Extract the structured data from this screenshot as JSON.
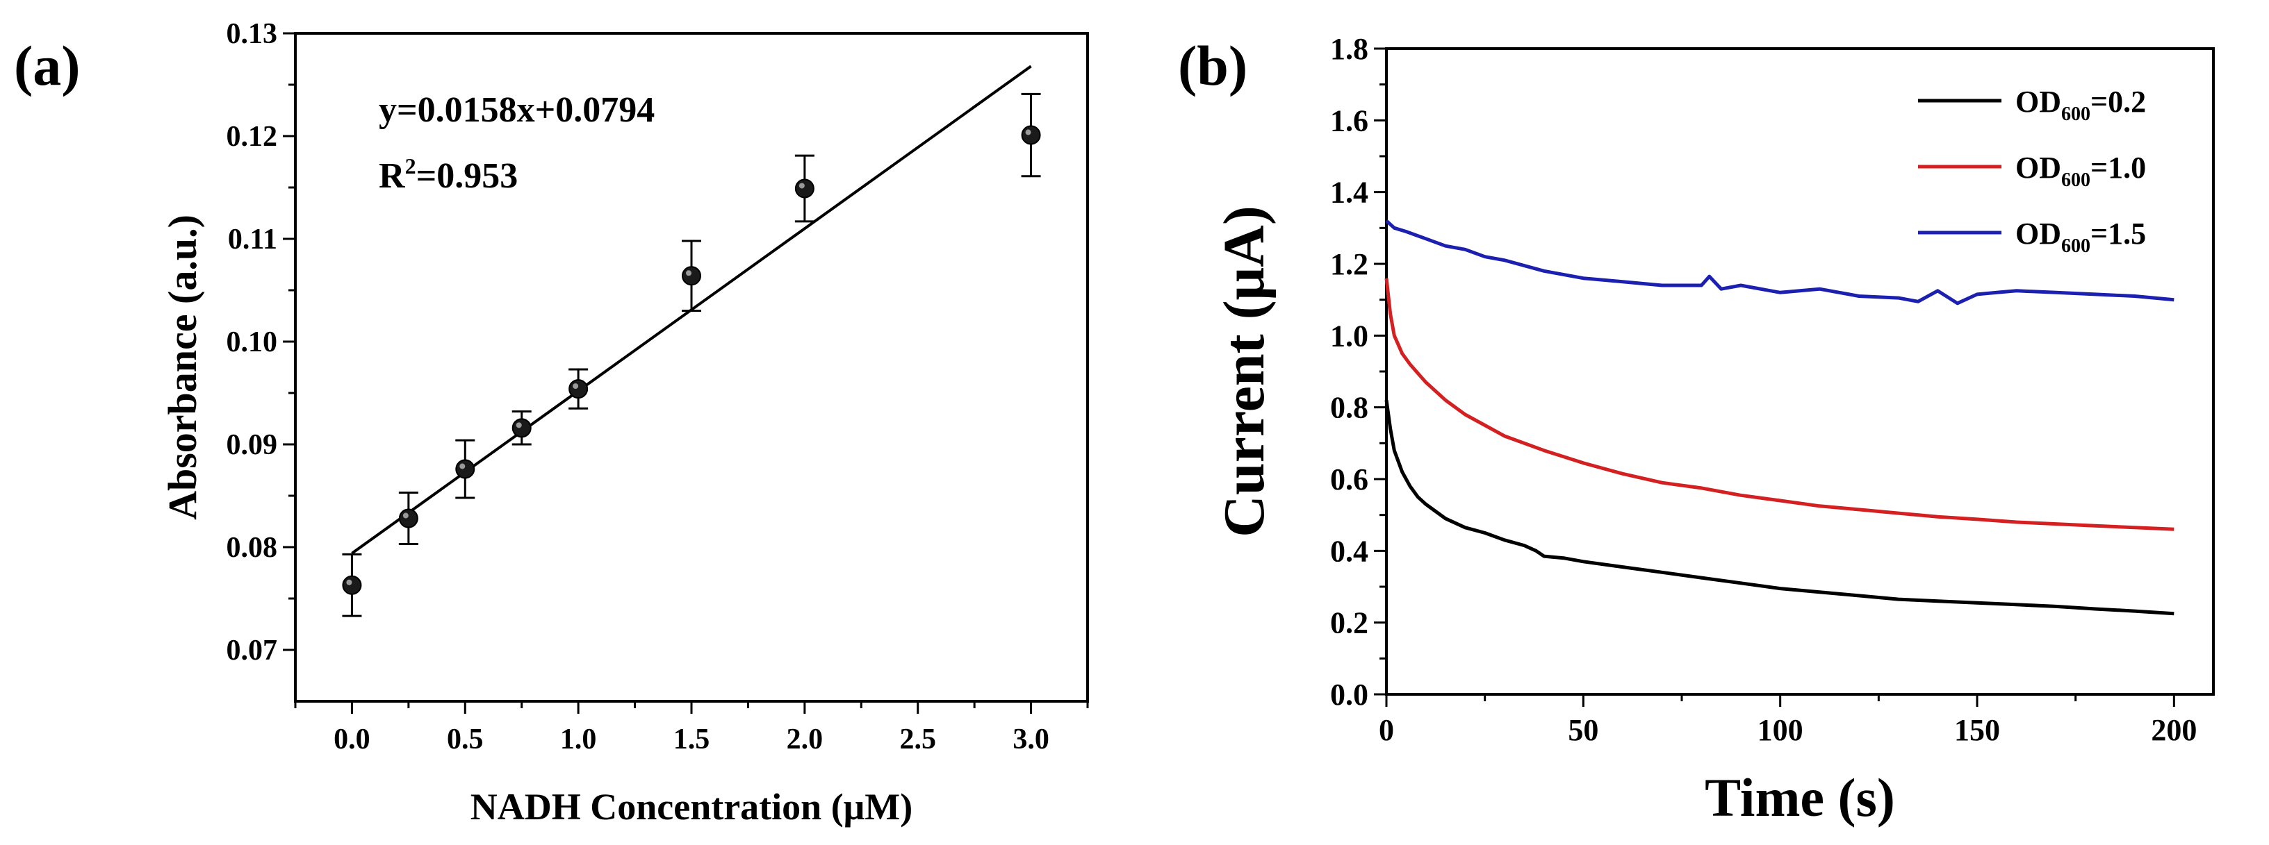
{
  "chart_data": [
    {
      "panel_label": "(a)",
      "type": "scatter",
      "title": "",
      "xlabel": "NADH Concentration (μM)",
      "ylabel": "Absorbance (a.u.)",
      "xlim": [
        -0.25,
        3.25
      ],
      "ylim": [
        0.065,
        0.13
      ],
      "x_ticks": [
        0.0,
        0.5,
        1.0,
        1.5,
        2.0,
        2.5,
        3.0
      ],
      "x_tick_labels": [
        "0.0",
        "0.5",
        "1.0",
        "1.5",
        "2.0",
        "2.5",
        "3.0"
      ],
      "y_ticks": [
        0.07,
        0.08,
        0.09,
        0.1,
        0.11,
        0.12,
        0.13
      ],
      "y_tick_labels": [
        "0.07",
        "0.08",
        "0.09",
        "0.10",
        "0.11",
        "0.12",
        "0.13"
      ],
      "grid": false,
      "series": [
        {
          "name": "Absorbance",
          "x": [
            0.0,
            0.25,
            0.5,
            0.75,
            1.0,
            1.5,
            2.0,
            3.0
          ],
          "y": [
            0.0763,
            0.0828,
            0.0876,
            0.0916,
            0.0954,
            0.1064,
            0.1149,
            0.1201
          ],
          "error": [
            0.003,
            0.0025,
            0.0028,
            0.0016,
            0.0019,
            0.0034,
            0.0032,
            0.004
          ]
        }
      ],
      "fit": {
        "slope": 0.0158,
        "intercept": 0.0794,
        "x_range": [
          0.0,
          3.0
        ]
      },
      "annotations": {
        "equation": "y=0.0158x+0.0794",
        "r_squared_prefix": "R",
        "r_squared_sup": "2",
        "r_squared_value": "=0.953"
      }
    },
    {
      "panel_label": "(b)",
      "type": "line",
      "title": "",
      "xlabel": "Time (s)",
      "ylabel": "Current (μA)",
      "xlim": [
        0,
        210
      ],
      "ylim": [
        0.0,
        1.8
      ],
      "x_ticks": [
        0,
        50,
        100,
        150,
        200
      ],
      "x_tick_labels": [
        "0",
        "50",
        "100",
        "150",
        "200"
      ],
      "y_ticks": [
        0.0,
        0.2,
        0.4,
        0.6,
        0.8,
        1.0,
        1.2,
        1.4,
        1.6,
        1.8
      ],
      "y_tick_labels": [
        "0.0",
        "0.2",
        "0.4",
        "0.6",
        "0.8",
        "1.0",
        "1.2",
        "1.4",
        "1.6",
        "1.8"
      ],
      "grid": false,
      "legend_position": "top-right",
      "series": [
        {
          "name": "OD600=0.2",
          "legend_prefix": "OD",
          "legend_sub": "600",
          "legend_suffix": "=0.2",
          "color": "#000000",
          "x": [
            0,
            1,
            2,
            4,
            6,
            8,
            10,
            15,
            20,
            25,
            30,
            35,
            38,
            40,
            45,
            50,
            60,
            70,
            80,
            90,
            100,
            110,
            120,
            130,
            140,
            150,
            160,
            170,
            180,
            190,
            200
          ],
          "y": [
            0.82,
            0.74,
            0.68,
            0.62,
            0.58,
            0.55,
            0.53,
            0.49,
            0.465,
            0.45,
            0.43,
            0.415,
            0.4,
            0.385,
            0.38,
            0.37,
            0.355,
            0.34,
            0.325,
            0.31,
            0.295,
            0.285,
            0.275,
            0.265,
            0.26,
            0.255,
            0.25,
            0.245,
            0.238,
            0.232,
            0.225
          ]
        },
        {
          "name": "OD600=1.0",
          "legend_prefix": "OD",
          "legend_sub": "600",
          "legend_suffix": "=1.0",
          "color": "#d42020",
          "x": [
            0,
            1,
            2,
            4,
            6,
            8,
            10,
            15,
            20,
            25,
            30,
            40,
            50,
            60,
            70,
            80,
            90,
            100,
            110,
            120,
            130,
            140,
            150,
            160,
            170,
            180,
            190,
            200
          ],
          "y": [
            1.16,
            1.06,
            1.0,
            0.95,
            0.92,
            0.895,
            0.87,
            0.82,
            0.78,
            0.75,
            0.72,
            0.68,
            0.645,
            0.615,
            0.59,
            0.575,
            0.555,
            0.54,
            0.525,
            0.515,
            0.505,
            0.495,
            0.488,
            0.48,
            0.475,
            0.47,
            0.465,
            0.46
          ]
        },
        {
          "name": "OD600=1.5",
          "legend_prefix": "OD",
          "legend_sub": "600",
          "legend_suffix": "=1.5",
          "color": "#1c20b0",
          "x": [
            0,
            2,
            5,
            10,
            15,
            20,
            25,
            30,
            40,
            50,
            60,
            70,
            80,
            82,
            85,
            90,
            100,
            110,
            120,
            130,
            135,
            140,
            145,
            150,
            155,
            160,
            170,
            180,
            190,
            200
          ],
          "y": [
            1.32,
            1.3,
            1.29,
            1.27,
            1.25,
            1.24,
            1.22,
            1.21,
            1.18,
            1.16,
            1.15,
            1.14,
            1.14,
            1.165,
            1.13,
            1.14,
            1.12,
            1.13,
            1.11,
            1.105,
            1.095,
            1.125,
            1.09,
            1.115,
            1.12,
            1.125,
            1.12,
            1.115,
            1.11,
            1.1
          ]
        }
      ]
    }
  ]
}
